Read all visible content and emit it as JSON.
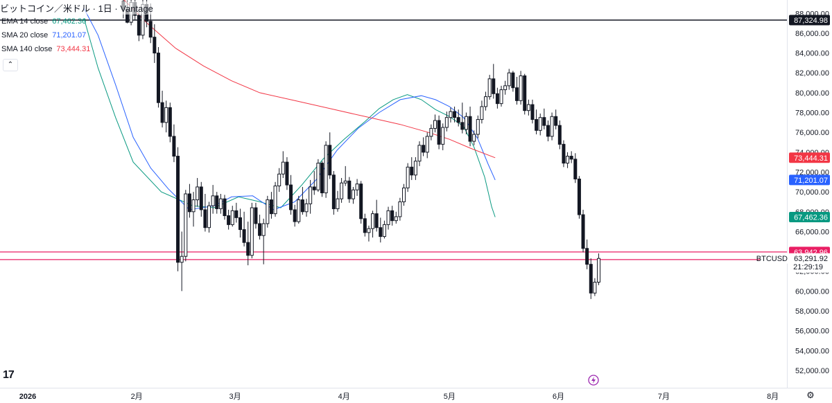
{
  "header": {
    "title": "ビットコイン／米ドル · 1日 · Vantage"
  },
  "legend": [
    {
      "label": "EMA 14 close",
      "value": "67,462.36",
      "color": "#089981"
    },
    {
      "label": "SMA 20 close",
      "value": "71,201.07",
      "color": "#2962ff"
    },
    {
      "label": "SMA 140 close",
      "value": "73,444.31",
      "color": "#f23645"
    }
  ],
  "symbol": "BTCUSD",
  "countdown": "21:29:19",
  "icons": {
    "logo": "tradingview-logo",
    "collapse": "chevron-up-icon",
    "lightning": "lightning-icon",
    "settings": "gear-icon"
  },
  "logo_text": "17",
  "collapse_glyph": "⌃",
  "settings_glyph": "⚙",
  "chart_data": {
    "type": "candlestick",
    "ylim": [
      50500,
      89500
    ],
    "y_ticks": [
      52000,
      54000,
      56000,
      58000,
      60000,
      62000,
      64000,
      66000,
      68000,
      70000,
      72000,
      74000,
      76000,
      78000,
      80000,
      82000,
      84000,
      86000,
      88000
    ],
    "x_labels": [
      {
        "label": "2026",
        "day": 0
      },
      {
        "label": "2月",
        "day": 31
      },
      {
        "label": "3月",
        "day": 59
      },
      {
        "label": "4月",
        "day": 90
      },
      {
        "label": "5月",
        "day": 120
      },
      {
        "label": "6月",
        "day": 151
      },
      {
        "label": "7月",
        "day": 181
      },
      {
        "label": "8月",
        "day": 212
      }
    ],
    "candles": [
      [
        89200,
        89500,
        87500,
        88400
      ],
      [
        88400,
        89300,
        87000,
        87100
      ],
      [
        87100,
        89400,
        86800,
        89100
      ],
      [
        89100,
        89500,
        87300,
        87800
      ],
      [
        87800,
        88300,
        85200,
        85800
      ],
      [
        85800,
        89400,
        85400,
        88900
      ],
      [
        88900,
        89500,
        86600,
        87200
      ],
      [
        87200,
        89000,
        85000,
        85600
      ],
      [
        85600,
        86900,
        83000,
        84000
      ],
      [
        84000,
        84600,
        78500,
        79000
      ],
      [
        79000,
        80200,
        76500,
        77000
      ],
      [
        77000,
        79200,
        76000,
        78500
      ],
      [
        78500,
        79000,
        75000,
        75600
      ],
      [
        75600,
        76800,
        73000,
        73600
      ],
      [
        73600,
        74500,
        62000,
        62900
      ],
      [
        62900,
        66000,
        60000,
        63500
      ],
      [
        63500,
        70200,
        63000,
        69800
      ],
      [
        69800,
        70800,
        67400,
        68000
      ],
      [
        68000,
        70000,
        66500,
        69200
      ],
      [
        69200,
        71400,
        68500,
        70500
      ],
      [
        70500,
        71000,
        67500,
        68200
      ],
      [
        68200,
        69800,
        66000,
        66400
      ],
      [
        66400,
        69000,
        65900,
        68600
      ],
      [
        68600,
        70700,
        67800,
        69600
      ],
      [
        69600,
        70000,
        67800,
        68300
      ],
      [
        68300,
        69800,
        67800,
        69300
      ],
      [
        69300,
        69700,
        67200,
        67600
      ],
      [
        67600,
        68200,
        66200,
        66700
      ],
      [
        66700,
        68600,
        66500,
        68100
      ],
      [
        68100,
        68900,
        66900,
        67400
      ],
      [
        67400,
        68300,
        65400,
        66200
      ],
      [
        66200,
        68000,
        64500,
        64900
      ],
      [
        64900,
        67000,
        62600,
        63600
      ],
      [
        63600,
        68900,
        63300,
        68400
      ],
      [
        68400,
        68900,
        66300,
        66800
      ],
      [
        66800,
        67700,
        65200,
        65600
      ],
      [
        65600,
        67300,
        62700,
        66800
      ],
      [
        66800,
        69600,
        66400,
        69200
      ],
      [
        69200,
        70000,
        67300,
        67800
      ],
      [
        67800,
        71000,
        67500,
        70600
      ],
      [
        70600,
        72400,
        70000,
        71800
      ],
      [
        71800,
        74100,
        71400,
        73000
      ],
      [
        73000,
        73500,
        70200,
        70700
      ],
      [
        70700,
        71700,
        67700,
        68200
      ],
      [
        68200,
        68700,
        66500,
        67000
      ],
      [
        67000,
        69600,
        66800,
        69200
      ],
      [
        69200,
        70500,
        67700,
        68000
      ],
      [
        68000,
        69300,
        67500,
        68800
      ],
      [
        68800,
        71200,
        67800,
        70500
      ],
      [
        70500,
        72100,
        69700,
        70200
      ],
      [
        70200,
        73300,
        70000,
        72900
      ],
      [
        72900,
        73100,
        69500,
        69900
      ],
      [
        69900,
        75100,
        69400,
        74700
      ],
      [
        74700,
        76000,
        71300,
        71700
      ],
      [
        71700,
        72100,
        67700,
        68300
      ],
      [
        68300,
        70100,
        68000,
        69300
      ],
      [
        69300,
        71400,
        68900,
        70900
      ],
      [
        70900,
        72600,
        70600,
        71100
      ],
      [
        71100,
        71500,
        68900,
        69300
      ],
      [
        69300,
        70500,
        68800,
        70200
      ],
      [
        70200,
        71300,
        69600,
        70800
      ],
      [
        70800,
        71100,
        66800,
        67300
      ],
      [
        67300,
        67800,
        65500,
        65900
      ],
      [
        65900,
        66600,
        65000,
        66300
      ],
      [
        66300,
        68100,
        65400,
        67800
      ],
      [
        67800,
        69200,
        66000,
        66400
      ],
      [
        66400,
        67400,
        64900,
        65500
      ],
      [
        65500,
        67100,
        65300,
        66700
      ],
      [
        66700,
        68500,
        66200,
        68100
      ],
      [
        68100,
        68600,
        66600,
        67100
      ],
      [
        67100,
        68000,
        66800,
        67500
      ],
      [
        67500,
        69400,
        67100,
        69000
      ],
      [
        69000,
        70800,
        68600,
        70400
      ],
      [
        70400,
        72900,
        70000,
        72500
      ],
      [
        72500,
        73500,
        71200,
        71700
      ],
      [
        71700,
        73500,
        71200,
        73100
      ],
      [
        73100,
        75100,
        72600,
        74700
      ],
      [
        74700,
        75500,
        73600,
        74000
      ],
      [
        74000,
        76000,
        73400,
        75600
      ],
      [
        75600,
        76800,
        75200,
        76400
      ],
      [
        76400,
        77800,
        76000,
        77200
      ],
      [
        77200,
        77700,
        74300,
        74800
      ],
      [
        74800,
        76900,
        74200,
        76500
      ],
      [
        76500,
        78100,
        76100,
        77500
      ],
      [
        77500,
        78500,
        77000,
        78100
      ],
      [
        78100,
        78600,
        77000,
        77500
      ],
      [
        77500,
        78300,
        76600,
        77000
      ],
      [
        77000,
        79000,
        75900,
        76300
      ],
      [
        76300,
        78000,
        75800,
        77600
      ],
      [
        77600,
        78600,
        74600,
        75100
      ],
      [
        75100,
        76200,
        74700,
        75800
      ],
      [
        75800,
        77700,
        75400,
        77300
      ],
      [
        77300,
        79200,
        76900,
        78600
      ],
      [
        78600,
        80100,
        78200,
        79600
      ],
      [
        79600,
        81800,
        79300,
        81400
      ],
      [
        81400,
        82900,
        79400,
        79900
      ],
      [
        79900,
        80500,
        78400,
        78900
      ],
      [
        78900,
        80700,
        78600,
        80300
      ],
      [
        80300,
        81200,
        79800,
        80700
      ],
      [
        80700,
        82400,
        80300,
        82000
      ],
      [
        82000,
        82200,
        80100,
        80500
      ],
      [
        80500,
        81600,
        78800,
        79200
      ],
      [
        79200,
        82200,
        78800,
        81700
      ],
      [
        81700,
        81900,
        77800,
        78200
      ],
      [
        78200,
        79300,
        77700,
        78800
      ],
      [
        78800,
        79300,
        76900,
        77300
      ],
      [
        77300,
        78300,
        75800,
        76200
      ],
      [
        76200,
        77900,
        75700,
        77500
      ],
      [
        77500,
        78400,
        76300,
        76700
      ],
      [
        76700,
        77200,
        75100,
        75600
      ],
      [
        75600,
        78000,
        75200,
        77600
      ],
      [
        77600,
        78300,
        76300,
        76700
      ],
      [
        76700,
        77200,
        74300,
        74800
      ],
      [
        74800,
        75200,
        72500,
        72900
      ],
      [
        72900,
        74000,
        72400,
        73600
      ],
      [
        73600,
        74100,
        72900,
        73300
      ],
      [
        73300,
        73900,
        70900,
        71300
      ],
      [
        71300,
        71600,
        67300,
        67700
      ],
      [
        67700,
        68200,
        63900,
        64300
      ],
      [
        64300,
        65200,
        62200,
        62700
      ],
      [
        62700,
        63300,
        59200,
        59800
      ],
      [
        59800,
        61300,
        59500,
        60900
      ],
      [
        60900,
        63800,
        60600,
        63292
      ]
    ],
    "series": [
      {
        "name": "EMA 14 close",
        "color": "#089981",
        "last": 67462.36,
        "points": [
          [
            16,
            87500
          ],
          [
            20,
            82500
          ],
          [
            25,
            77500
          ],
          [
            30,
            73000
          ],
          [
            38,
            70000
          ],
          [
            47,
            68600
          ],
          [
            53,
            68400
          ],
          [
            60,
            69500
          ],
          [
            66,
            69000
          ],
          [
            72,
            68400
          ],
          [
            78,
            70700
          ],
          [
            84,
            73300
          ],
          [
            90,
            75300
          ],
          [
            96,
            77100
          ],
          [
            100,
            78400
          ],
          [
            104,
            79300
          ],
          [
            108,
            79800
          ],
          [
            112,
            79300
          ],
          [
            116,
            78300
          ],
          [
            120,
            77600
          ],
          [
            124,
            76600
          ],
          [
            127,
            74500
          ],
          [
            130,
            71500
          ],
          [
            132,
            68500
          ],
          [
            133,
            67462.36
          ]
        ]
      },
      {
        "name": "SMA 20 close",
        "color": "#2962ff",
        "last": 71201.07,
        "points": [
          [
            16,
            88500
          ],
          [
            20,
            85800
          ],
          [
            25,
            80800
          ],
          [
            30,
            75500
          ],
          [
            35,
            72400
          ],
          [
            40,
            70300
          ],
          [
            46,
            68200
          ],
          [
            53,
            68600
          ],
          [
            58,
            69500
          ],
          [
            64,
            69600
          ],
          [
            70,
            68200
          ],
          [
            76,
            69000
          ],
          [
            82,
            71200
          ],
          [
            88,
            74200
          ],
          [
            94,
            76400
          ],
          [
            100,
            78000
          ],
          [
            106,
            79300
          ],
          [
            112,
            79700
          ],
          [
            116,
            79300
          ],
          [
            120,
            78600
          ],
          [
            124,
            77500
          ],
          [
            128,
            75400
          ],
          [
            131,
            72800
          ],
          [
            133,
            71201.07
          ]
        ]
      },
      {
        "name": "SMA 140 close",
        "color": "#f23645",
        "last": 73444.31,
        "points": [
          [
            27,
            89500
          ],
          [
            34,
            87000
          ],
          [
            42,
            84500
          ],
          [
            50,
            82700
          ],
          [
            58,
            81200
          ],
          [
            66,
            80000
          ],
          [
            76,
            79200
          ],
          [
            86,
            78400
          ],
          [
            96,
            77600
          ],
          [
            106,
            76800
          ],
          [
            114,
            76000
          ],
          [
            120,
            75300
          ],
          [
            126,
            74400
          ],
          [
            133,
            73444.31
          ]
        ]
      }
    ],
    "hlines": [
      {
        "value": 87324.98,
        "label": "87,324.98",
        "color": "#131722"
      },
      {
        "value": 63942.96,
        "label": "63,942.96",
        "color": "#e91e63"
      },
      {
        "value": 63175.98,
        "label": "63,175.98",
        "color": "#e91e63"
      }
    ],
    "price_tags": [
      {
        "value": 73444.31,
        "label": "73,444.31",
        "color": "#f23645"
      },
      {
        "value": 71201.07,
        "label": "71,201.07",
        "color": "#2962ff"
      },
      {
        "value": 67462.36,
        "label": "67,462.36",
        "color": "#089981"
      }
    ],
    "last_price": {
      "value": 63291.92,
      "label": "63,291.92"
    }
  }
}
